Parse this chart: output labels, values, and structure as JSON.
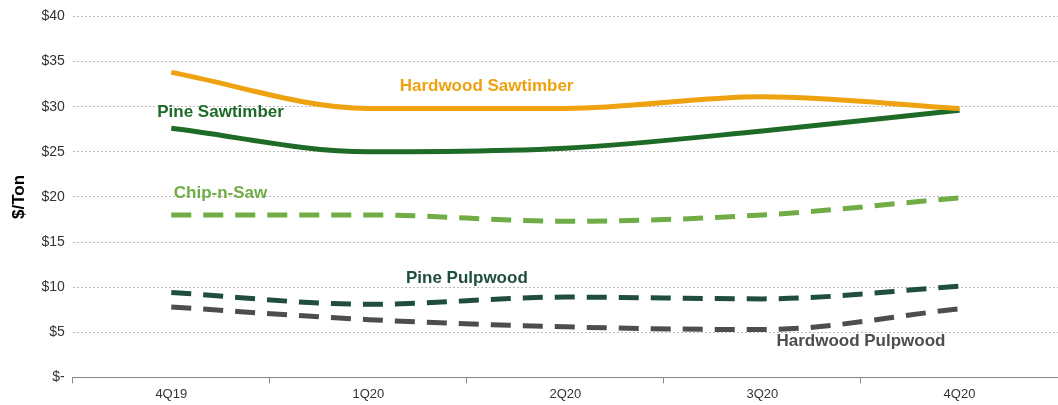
{
  "chart_data": {
    "type": "line",
    "ylabel": "$/Ton",
    "categories": [
      "4Q19",
      "1Q20",
      "2Q20",
      "3Q20",
      "4Q20"
    ],
    "series": [
      {
        "name": "Hardwood Sawtimber",
        "color": "#eea20f",
        "values": [
          33.8,
          29.8,
          29.8,
          31.1,
          29.8
        ],
        "line_style": "solid"
      },
      {
        "name": "Pine Sawtimber",
        "color": "#1e6b27",
        "values": [
          27.6,
          25.0,
          25.4,
          27.3,
          29.6
        ],
        "line_style": "solid"
      },
      {
        "name": "Chip-n-Saw",
        "color": "#70ad47",
        "values": [
          18.0,
          18.0,
          17.3,
          18.0,
          19.9
        ],
        "line_style": "dashed"
      },
      {
        "name": "Pine Pulpwood",
        "color": "#1f4e3d",
        "values": [
          9.4,
          8.1,
          8.9,
          8.7,
          10.1
        ],
        "line_style": "dashed"
      },
      {
        "name": "Hardwood Pulpwood",
        "color": "#4d4d4d",
        "values": [
          7.8,
          6.4,
          5.6,
          5.3,
          7.6
        ],
        "line_style": "dashed"
      }
    ],
    "ylim": [
      0,
      40
    ],
    "yticks": [
      {
        "value": 0,
        "label": "$-"
      },
      {
        "value": 5,
        "label": "$5"
      },
      {
        "value": 10,
        "label": "$10"
      },
      {
        "value": 15,
        "label": "$15"
      },
      {
        "value": 20,
        "label": "$20"
      },
      {
        "value": 25,
        "label": "$25"
      },
      {
        "value": 30,
        "label": "$30"
      },
      {
        "value": 35,
        "label": "$35"
      },
      {
        "value": 40,
        "label": "$40"
      }
    ],
    "grid": "y",
    "legend": false,
    "marker": "none"
  }
}
